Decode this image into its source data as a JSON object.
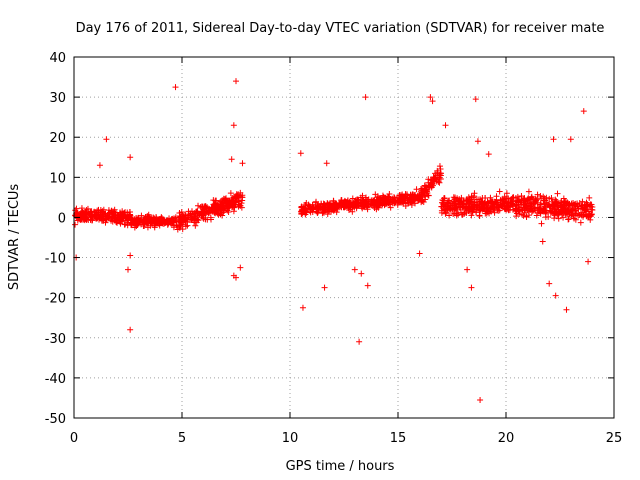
{
  "chart_data": {
    "type": "scatter",
    "title": "Day 176 of 2011, Sidereal Day-to-day VTEC variation (SDTVAR) for receiver mate",
    "xlabel": "GPS time / hours",
    "ylabel": "SDTVAR / TECUs",
    "xlim": [
      0,
      25
    ],
    "ylim": [
      -50,
      40
    ],
    "xticks": [
      0,
      5,
      10,
      15,
      20,
      25
    ],
    "yticks": [
      -50,
      -40,
      -30,
      -20,
      -10,
      0,
      10,
      20,
      30,
      40
    ],
    "grid": true,
    "marker": "+",
    "color": "#ff0000",
    "dense_bands": [
      {
        "x_start": 0.0,
        "x_end": 2.6,
        "y_center": [
          0.5,
          0.0
        ],
        "y_spread": 3.0
      },
      {
        "x_start": 2.6,
        "x_end": 4.8,
        "y_center": [
          -1.0,
          -1.0
        ],
        "y_spread": 2.0
      },
      {
        "x_start": 4.8,
        "x_end": 7.8,
        "y_center": [
          -1.0,
          4.5
        ],
        "y_spread": 3.5
      },
      {
        "x_start": 10.5,
        "x_end": 16.0,
        "y_center": [
          2.0,
          5.0
        ],
        "y_spread": 2.5
      },
      {
        "x_start": 16.0,
        "x_end": 17.0,
        "y_center": [
          5.0,
          11.0
        ],
        "y_spread": 3.5
      },
      {
        "x_start": 17.0,
        "x_end": 20.0,
        "y_center": [
          3.0,
          3.0
        ],
        "y_spread": 4.0
      },
      {
        "x_start": 20.0,
        "x_end": 24.0,
        "y_center": [
          3.0,
          2.0
        ],
        "y_spread": 4.5
      }
    ],
    "outliers": [
      {
        "x": 1.5,
        "y": 19.5
      },
      {
        "x": 1.2,
        "y": 13.0
      },
      {
        "x": 2.6,
        "y": 15.0
      },
      {
        "x": 2.6,
        "y": -28.0
      },
      {
        "x": 2.5,
        "y": -13.0
      },
      {
        "x": 2.6,
        "y": -9.5
      },
      {
        "x": 0.1,
        "y": -10.0
      },
      {
        "x": 4.7,
        "y": 32.5
      },
      {
        "x": 7.5,
        "y": 34.0
      },
      {
        "x": 7.4,
        "y": 23.0
      },
      {
        "x": 7.3,
        "y": 14.5
      },
      {
        "x": 7.8,
        "y": 13.5
      },
      {
        "x": 7.7,
        "y": -12.5
      },
      {
        "x": 7.4,
        "y": -14.5
      },
      {
        "x": 7.5,
        "y": -15.0
      },
      {
        "x": 10.5,
        "y": 16.0
      },
      {
        "x": 10.6,
        "y": -22.5
      },
      {
        "x": 11.6,
        "y": -17.5
      },
      {
        "x": 11.7,
        "y": 13.5
      },
      {
        "x": 13.2,
        "y": -31.0
      },
      {
        "x": 13.5,
        "y": 30.0
      },
      {
        "x": 13.0,
        "y": -13.0
      },
      {
        "x": 13.3,
        "y": -14.0
      },
      {
        "x": 13.6,
        "y": -17.0
      },
      {
        "x": 16.0,
        "y": -9.0
      },
      {
        "x": 16.5,
        "y": 30.0
      },
      {
        "x": 16.6,
        "y": 29.0
      },
      {
        "x": 17.2,
        "y": 23.0
      },
      {
        "x": 18.4,
        "y": -17.5
      },
      {
        "x": 18.2,
        "y": -13.0
      },
      {
        "x": 18.6,
        "y": 29.5
      },
      {
        "x": 18.7,
        "y": 19.0
      },
      {
        "x": 18.8,
        "y": -45.5
      },
      {
        "x": 19.2,
        "y": 15.8
      },
      {
        "x": 22.0,
        "y": -16.5
      },
      {
        "x": 22.2,
        "y": 19.5
      },
      {
        "x": 22.3,
        "y": -19.5
      },
      {
        "x": 22.8,
        "y": -23.0
      },
      {
        "x": 23.0,
        "y": 19.5
      },
      {
        "x": 23.6,
        "y": 26.5
      },
      {
        "x": 23.8,
        "y": -11.0
      },
      {
        "x": 21.7,
        "y": -6.0
      }
    ]
  }
}
